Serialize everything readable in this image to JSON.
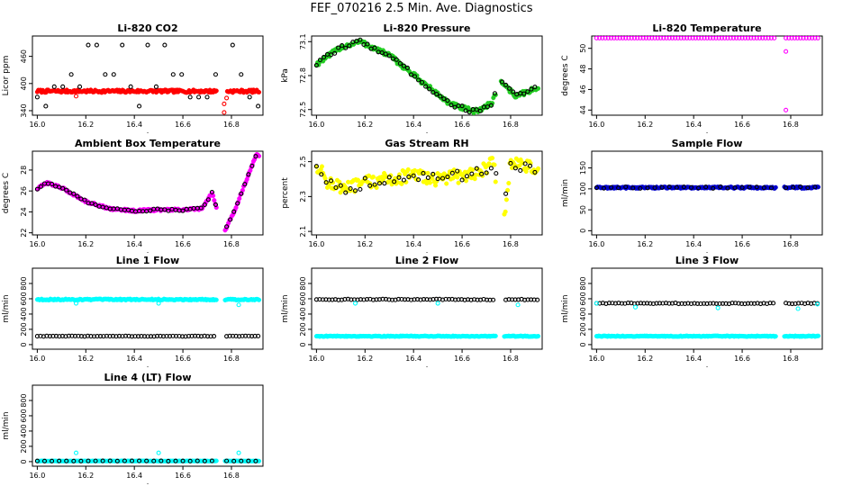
{
  "title": "FEF_070216  2.5 Min. Ave. Diagnostics",
  "chart_data": [
    {
      "type": "scatter",
      "title": "Li-820 CO2",
      "xlabel": "",
      "ylabel": "Licor ppm",
      "xlim": [
        15.98,
        16.93
      ],
      "ylim": [
        330,
        505
      ],
      "xticks": [
        16.0,
        16.2,
        16.4,
        16.6,
        16.8
      ],
      "xtick_labels": [
        "16.0",
        "16.2",
        "16.4",
        "16.6",
        "16.8"
      ],
      "yticks": [
        340,
        400,
        460
      ],
      "ytick_labels": [
        "340",
        "400",
        "460"
      ],
      "series": [
        {
          "name": "filled",
          "color": "#ff0000",
          "shape": "filled",
          "kind": "flat",
          "level": 383,
          "noise": 3,
          "gap": [
            16.74,
            16.78
          ]
        },
        {
          "name": "open",
          "color": "#000000",
          "shape": "open",
          "kind": "levels",
          "levels": [
            350,
            370,
            393,
            420,
            485
          ],
          "step": 0.035,
          "gap": [
            16.74,
            16.78
          ]
        },
        {
          "name": "outliers",
          "color": "#ff0000",
          "shape": "open",
          "kind": "points",
          "x": [
            16.16,
            16.77,
            16.77,
            16.78
          ],
          "y": [
            372,
            336,
            355,
            368
          ]
        }
      ]
    },
    {
      "type": "scatter",
      "title": "Li-820 Pressure",
      "xlabel": "",
      "ylabel": "kPa",
      "xlim": [
        15.98,
        16.93
      ],
      "ylim": [
        72.45,
        73.15
      ],
      "xticks": [
        16.0,
        16.2,
        16.4,
        16.6,
        16.8
      ],
      "xtick_labels": [
        "16.0",
        "16.2",
        "16.4",
        "16.6",
        "16.8"
      ],
      "yticks": [
        72.5,
        72.8,
        73.1
      ],
      "ytick_labels": [
        "72.5",
        "72.8",
        "73.1"
      ],
      "series": [
        {
          "name": "filled",
          "color": "#22cc22",
          "shape": "filled",
          "kind": "curve",
          "noise": 0.02,
          "gap": [
            16.74,
            16.76
          ],
          "points": [
            [
              16.0,
              72.9
            ],
            [
              16.1,
              73.05
            ],
            [
              16.18,
              73.1
            ],
            [
              16.3,
              72.98
            ],
            [
              16.45,
              72.72
            ],
            [
              16.55,
              72.55
            ],
            [
              16.65,
              72.48
            ],
            [
              16.72,
              72.55
            ],
            [
              16.76,
              72.75
            ],
            [
              16.82,
              72.62
            ],
            [
              16.9,
              72.68
            ]
          ]
        },
        {
          "name": "open",
          "color": "#000000",
          "shape": "open",
          "kind": "curve",
          "noise": 0.02,
          "step": 0.015,
          "gap": [
            16.74,
            16.76
          ],
          "points": [
            [
              16.0,
              72.9
            ],
            [
              16.1,
              73.05
            ],
            [
              16.18,
              73.1
            ],
            [
              16.3,
              72.98
            ],
            [
              16.45,
              72.72
            ],
            [
              16.55,
              72.55
            ],
            [
              16.65,
              72.48
            ],
            [
              16.72,
              72.55
            ],
            [
              16.76,
              72.75
            ],
            [
              16.82,
              72.62
            ],
            [
              16.9,
              72.68
            ]
          ]
        }
      ]
    },
    {
      "type": "scatter",
      "title": "Li-820 Temperature",
      "xlabel": "",
      "ylabel": "degrees C",
      "xlim": [
        15.98,
        16.93
      ],
      "ylim": [
        43.5,
        51.2
      ],
      "xticks": [
        16.0,
        16.2,
        16.4,
        16.6,
        16.8
      ],
      "xtick_labels": [
        "16.0",
        "16.2",
        "16.4",
        "16.6",
        "16.8"
      ],
      "yticks": [
        44,
        46,
        48,
        50
      ],
      "ytick_labels": [
        "44",
        "46",
        "48",
        "50"
      ],
      "series": [
        {
          "name": "open",
          "color": "#ff00ff",
          "shape": "open",
          "kind": "flat",
          "level": 51.0,
          "noise": 0,
          "step": 0.012,
          "gap": [
            16.74,
            16.77
          ]
        },
        {
          "name": "outliers",
          "color": "#ff00ff",
          "shape": "open",
          "kind": "points",
          "x": [
            16.78,
            16.78
          ],
          "y": [
            49.7,
            44.0
          ]
        }
      ]
    },
    {
      "type": "scatter",
      "title": "Ambient Box Temperature",
      "xlabel": "",
      "ylabel": "degrees C",
      "xlim": [
        15.98,
        16.93
      ],
      "ylim": [
        21.8,
        29.8
      ],
      "xticks": [
        16.0,
        16.2,
        16.4,
        16.6,
        16.8
      ],
      "xtick_labels": [
        "16.0",
        "16.2",
        "16.4",
        "16.6",
        "16.8"
      ],
      "yticks": [
        22,
        24,
        26,
        28
      ],
      "ytick_labels": [
        "22",
        "24",
        "26",
        "28"
      ],
      "series": [
        {
          "name": "filled",
          "color": "#ff00ff",
          "shape": "filled",
          "kind": "curve",
          "noise": 0.1,
          "gap": [
            16.74,
            16.77
          ],
          "points": [
            [
              16.0,
              26.2
            ],
            [
              16.04,
              26.8
            ],
            [
              16.1,
              26.3
            ],
            [
              16.2,
              25.0
            ],
            [
              16.3,
              24.3
            ],
            [
              16.4,
              24.1
            ],
            [
              16.5,
              24.2
            ],
            [
              16.6,
              24.2
            ],
            [
              16.68,
              24.3
            ],
            [
              16.72,
              25.8
            ],
            [
              16.77,
              22.0
            ],
            [
              16.82,
              24.5
            ],
            [
              16.9,
              29.4
            ]
          ]
        },
        {
          "name": "open",
          "color": "#000000",
          "shape": "open",
          "kind": "curve",
          "noise": 0.1,
          "step": 0.015,
          "gap": [
            16.74,
            16.77
          ],
          "points": [
            [
              16.0,
              26.2
            ],
            [
              16.04,
              26.8
            ],
            [
              16.1,
              26.3
            ],
            [
              16.2,
              25.0
            ],
            [
              16.3,
              24.3
            ],
            [
              16.4,
              24.1
            ],
            [
              16.5,
              24.2
            ],
            [
              16.6,
              24.2
            ],
            [
              16.68,
              24.3
            ],
            [
              16.72,
              25.8
            ],
            [
              16.77,
              22.0
            ],
            [
              16.82,
              24.5
            ],
            [
              16.9,
              29.4
            ]
          ]
        }
      ]
    },
    {
      "type": "scatter",
      "title": "Gas Stream RH",
      "xlabel": "",
      "ylabel": "percent",
      "xlim": [
        15.98,
        16.93
      ],
      "ylim": [
        2.08,
        2.56
      ],
      "xticks": [
        16.0,
        16.2,
        16.4,
        16.6,
        16.8
      ],
      "xtick_labels": [
        "16.0",
        "16.2",
        "16.4",
        "16.6",
        "16.8"
      ],
      "yticks": [
        2.1,
        2.3,
        2.5
      ],
      "ytick_labels": [
        "2.1",
        "2.3",
        "2.5"
      ],
      "series": [
        {
          "name": "filled",
          "color": "#ffff00",
          "shape": "filled",
          "kind": "curve",
          "noise": 0.04,
          "gap": [
            16.74,
            16.77
          ],
          "points": [
            [
              16.0,
              2.48
            ],
            [
              16.05,
              2.38
            ],
            [
              16.12,
              2.34
            ],
            [
              16.2,
              2.38
            ],
            [
              16.3,
              2.4
            ],
            [
              16.4,
              2.42
            ],
            [
              16.5,
              2.4
            ],
            [
              16.6,
              2.42
            ],
            [
              16.7,
              2.46
            ],
            [
              16.73,
              2.5
            ],
            [
              16.77,
              2.12
            ],
            [
              16.8,
              2.5
            ],
            [
              16.9,
              2.46
            ]
          ]
        },
        {
          "name": "open",
          "color": "#000000",
          "shape": "open",
          "kind": "curve",
          "noise": 0.03,
          "step": 0.02,
          "gap": [
            16.74,
            16.77
          ],
          "points": [
            [
              16.0,
              2.48
            ],
            [
              16.05,
              2.38
            ],
            [
              16.12,
              2.34
            ],
            [
              16.2,
              2.38
            ],
            [
              16.3,
              2.4
            ],
            [
              16.4,
              2.42
            ],
            [
              16.5,
              2.4
            ],
            [
              16.6,
              2.42
            ],
            [
              16.7,
              2.46
            ],
            [
              16.73,
              2.5
            ],
            [
              16.77,
              2.22
            ],
            [
              16.8,
              2.5
            ],
            [
              16.9,
              2.44
            ]
          ]
        }
      ]
    },
    {
      "type": "scatter",
      "title": "Sample Flow",
      "xlabel": "",
      "ylabel": "ml/min",
      "xlim": [
        15.98,
        16.93
      ],
      "ylim": [
        -10,
        190
      ],
      "xticks": [
        16.0,
        16.2,
        16.4,
        16.6,
        16.8
      ],
      "xtick_labels": [
        "16.0",
        "16.2",
        "16.4",
        "16.6",
        "16.8"
      ],
      "yticks": [
        0,
        50,
        100,
        150
      ],
      "ytick_labels": [
        "0",
        "50",
        "100",
        "150"
      ],
      "series": [
        {
          "name": "filled",
          "color": "#0000cc",
          "shape": "filled",
          "kind": "flat",
          "level": 103,
          "noise": 2,
          "gap": [
            16.74,
            16.77
          ]
        },
        {
          "name": "open",
          "color": "#000000",
          "shape": "open",
          "kind": "flat",
          "level": 103,
          "noise": 2,
          "step": 0.03,
          "gap": [
            16.74,
            16.77
          ]
        }
      ]
    },
    {
      "type": "scatter",
      "title": "Line 1 Flow",
      "xlabel": "",
      "ylabel": "ml/min",
      "xlim": [
        15.98,
        16.93
      ],
      "ylim": [
        -60,
        1000
      ],
      "xticks": [
        16.0,
        16.2,
        16.4,
        16.6,
        16.8
      ],
      "xtick_labels": [
        "16.0",
        "16.2",
        "16.4",
        "16.6",
        "16.8"
      ],
      "yticks": [
        0,
        200,
        400,
        600,
        800
      ],
      "ytick_labels": [
        "0",
        "200",
        "400",
        "600",
        "800"
      ],
      "series": [
        {
          "name": "filled",
          "color": "#00ffff",
          "shape": "filled",
          "kind": "flat",
          "level": 590,
          "noise": 8,
          "gap": [
            16.74,
            16.77
          ]
        },
        {
          "name": "open",
          "color": "#000000",
          "shape": "open",
          "kind": "flat",
          "level": 110,
          "noise": 3,
          "step": 0.013,
          "gap": [
            16.74,
            16.77
          ]
        },
        {
          "name": "outliers",
          "color": "#00ffff",
          "shape": "open",
          "kind": "points",
          "x": [
            16.16,
            16.5,
            16.83
          ],
          "y": [
            540,
            540,
            520
          ]
        }
      ]
    },
    {
      "type": "scatter",
      "title": "Line 2 Flow",
      "xlabel": "",
      "ylabel": "ml/min",
      "xlim": [
        15.98,
        16.93
      ],
      "ylim": [
        -60,
        1000
      ],
      "xticks": [
        16.0,
        16.2,
        16.4,
        16.6,
        16.8
      ],
      "xtick_labels": [
        "16.0",
        "16.2",
        "16.4",
        "16.6",
        "16.8"
      ],
      "yticks": [
        0,
        200,
        400,
        600,
        800
      ],
      "ytick_labels": [
        "0",
        "200",
        "400",
        "600",
        "800"
      ],
      "series": [
        {
          "name": "filled",
          "color": "#00ffff",
          "shape": "filled",
          "kind": "flat",
          "level": 110,
          "noise": 5,
          "gap": [
            16.74,
            16.77
          ]
        },
        {
          "name": "open",
          "color": "#000000",
          "shape": "open",
          "kind": "flat",
          "level": 590,
          "noise": 6,
          "step": 0.013,
          "gap": [
            16.74,
            16.77
          ]
        },
        {
          "name": "outliers",
          "color": "#00ffff",
          "shape": "open",
          "kind": "points",
          "x": [
            16.16,
            16.5,
            16.83
          ],
          "y": [
            540,
            540,
            520
          ]
        }
      ]
    },
    {
      "type": "scatter",
      "title": "Line 3 Flow",
      "xlabel": "",
      "ylabel": "ml/min",
      "xlim": [
        15.98,
        16.93
      ],
      "ylim": [
        -60,
        1000
      ],
      "xticks": [
        16.0,
        16.2,
        16.4,
        16.6,
        16.8
      ],
      "xtick_labels": [
        "16.0",
        "16.2",
        "16.4",
        "16.6",
        "16.8"
      ],
      "yticks": [
        0,
        200,
        400,
        600,
        800
      ],
      "ytick_labels": [
        "0",
        "200",
        "400",
        "600",
        "800"
      ],
      "series": [
        {
          "name": "filled",
          "color": "#00ffff",
          "shape": "filled",
          "kind": "flat",
          "level": 110,
          "noise": 5,
          "gap": [
            16.74,
            16.77
          ]
        },
        {
          "name": "open",
          "color": "#000000",
          "shape": "open",
          "kind": "flat",
          "level": 540,
          "noise": 6,
          "step": 0.013,
          "gap": [
            16.74,
            16.77
          ]
        },
        {
          "name": "outliers",
          "color": "#00ffff",
          "shape": "open",
          "kind": "points",
          "x": [
            16.0,
            16.16,
            16.5,
            16.83,
            16.91
          ],
          "y": [
            540,
            490,
            480,
            470,
            530
          ]
        }
      ]
    },
    {
      "type": "scatter",
      "title": "Line 4 (LT) Flow",
      "xlabel": "",
      "ylabel": "ml/min",
      "xlim": [
        15.98,
        16.93
      ],
      "ylim": [
        -60,
        1000
      ],
      "xticks": [
        16.0,
        16.2,
        16.4,
        16.6,
        16.8
      ],
      "xtick_labels": [
        "16.0",
        "16.2",
        "16.4",
        "16.6",
        "16.8"
      ],
      "yticks": [
        0,
        200,
        400,
        600,
        800
      ],
      "ytick_labels": [
        "0",
        "200",
        "400",
        "600",
        "800"
      ],
      "series": [
        {
          "name": "filled",
          "color": "#00ffff",
          "shape": "filled",
          "kind": "flat",
          "level": 8,
          "noise": 2,
          "gap": [
            16.74,
            16.77
          ]
        },
        {
          "name": "open",
          "color": "#000000",
          "shape": "open",
          "kind": "flat",
          "level": 8,
          "noise": 2,
          "step": 0.03,
          "gap": [
            16.74,
            16.77
          ]
        },
        {
          "name": "outliers",
          "color": "#00ffff",
          "shape": "open",
          "kind": "points",
          "x": [
            16.16,
            16.5,
            16.83
          ],
          "y": [
            115,
            115,
            115
          ]
        }
      ]
    }
  ]
}
